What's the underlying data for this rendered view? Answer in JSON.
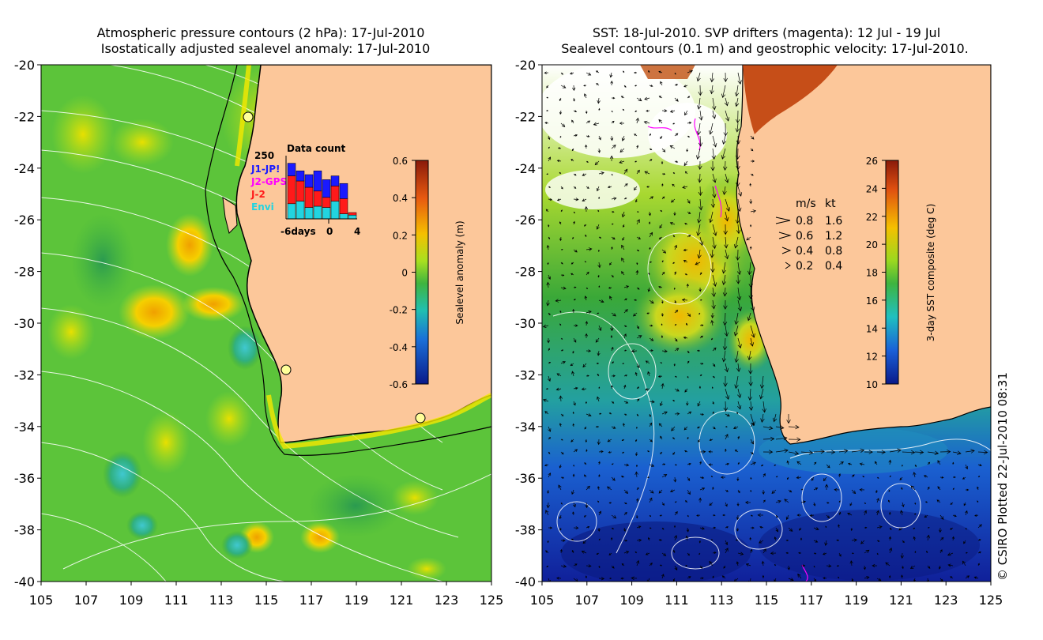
{
  "left_panel": {
    "title_line1": "Atmospheric pressure contours (2 hPa): 17-Jul-2010",
    "title_line2": "Isostatically adjusted sealevel anomaly: 17-Jul-2010",
    "colorbar": {
      "label": "Sealevel anomaly (m)",
      "ticks": [
        "0.6",
        "0.4",
        "0.2",
        "0",
        "-0.2",
        "-0.4",
        "-0.6"
      ],
      "range": [
        -0.6,
        0.6
      ]
    },
    "inset": {
      "title": "Data count",
      "ymax_label": "250",
      "x_ticks": [
        "-6days",
        "0",
        "4"
      ],
      "legend": [
        {
          "label": "J1-JP!",
          "color": "#1a1aff"
        },
        {
          "label": "J2-GPS",
          "color": "#ff00ff"
        },
        {
          "label": "J-2",
          "color": "#ff1a1a"
        },
        {
          "label": "Envi",
          "color": "#22d4e0"
        }
      ],
      "bars": [
        {
          "envi": 60,
          "j2": 110,
          "j1": 50
        },
        {
          "envi": 70,
          "j2": 80,
          "j1": 40
        },
        {
          "envi": 45,
          "j2": 80,
          "j1": 50
        },
        {
          "envi": 50,
          "j2": 60,
          "j1": 80
        },
        {
          "envi": 45,
          "j2": 40,
          "j1": 70
        },
        {
          "envi": 70,
          "j2": 60,
          "j1": 40
        },
        {
          "envi": 20,
          "j2": 60,
          "j1": 60
        },
        {
          "envi": 15,
          "j2": 10,
          "j1": 0
        }
      ]
    }
  },
  "right_panel": {
    "title_line1": "SST: 18-Jul-2010. SVP drifters (magenta): 12 Jul - 19 Jul",
    "title_line2": "Sealevel contours (0.1 m) and geostrophic velocity: 17-Jul-2010.",
    "colorbar": {
      "label": "3-day SST composite (deg C)",
      "ticks": [
        "26",
        "24",
        "22",
        "20",
        "18",
        "16",
        "14",
        "12",
        "10"
      ],
      "range": [
        10,
        26
      ]
    },
    "velocity_key": {
      "header_ms": "m/s",
      "header_kt": "kt",
      "rows": [
        {
          "ms": "0.8",
          "kt": "1.6"
        },
        {
          "ms": "0.6",
          "kt": "1.2"
        },
        {
          "ms": "0.4",
          "kt": "0.8"
        },
        {
          "ms": "0.2",
          "kt": "0.4"
        }
      ]
    }
  },
  "axes": {
    "lat_labels": [
      "-20",
      "-22",
      "-24",
      "-26",
      "-28",
      "-30",
      "-32",
      "-34",
      "-36",
      "-38",
      "-40"
    ],
    "lon_labels": [
      "105",
      "107",
      "109",
      "111",
      "113",
      "115",
      "117",
      "119",
      "121",
      "123",
      "125"
    ],
    "lat_range": [
      -40,
      -20
    ],
    "lon_range": [
      105,
      125
    ]
  },
  "credit": "© CSIRO Plotted 22-Jul-2010 08:31",
  "colors": {
    "land": "#fcc79a",
    "sla_mid": "#5cc43a",
    "sst_mid": "#3fb43f"
  }
}
